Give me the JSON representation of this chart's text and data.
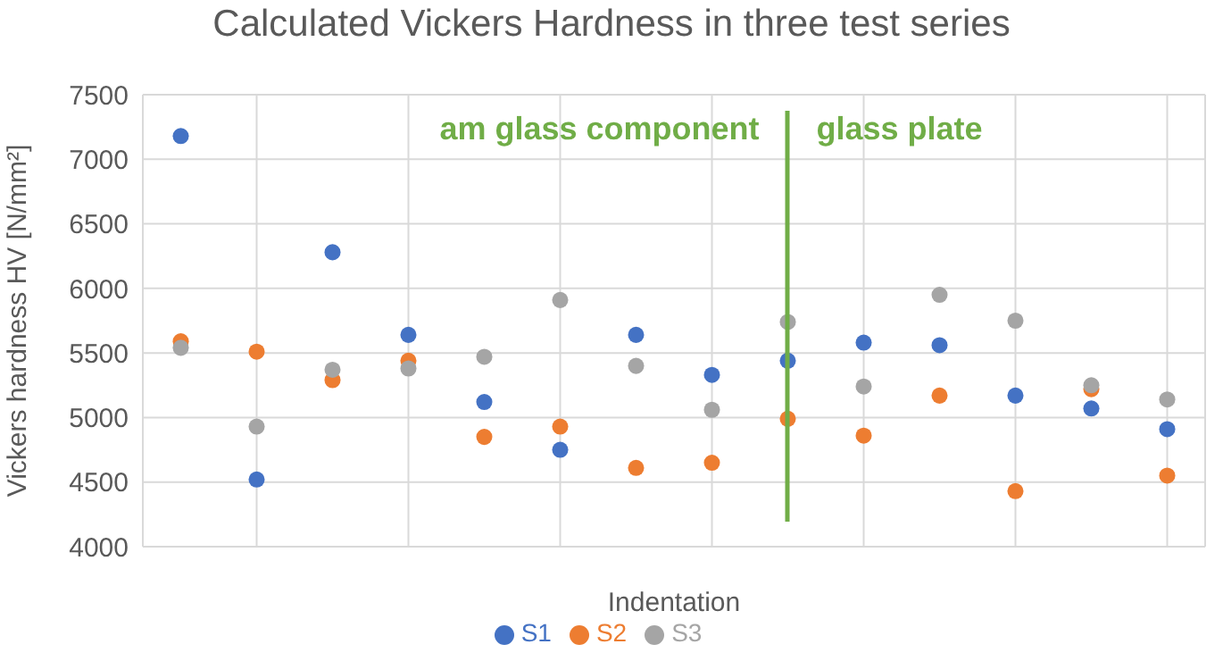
{
  "chart_data": {
    "type": "scatter",
    "title": "Calculated Vickers Hardness in three test series",
    "xlabel": "Indentation",
    "ylabel": "Vickers hardness HV [N/mm²]",
    "categories": [
      null,
      null,
      null,
      null,
      null,
      null,
      null,
      null,
      null,
      null,
      null,
      null,
      null,
      null
    ],
    "series": [
      {
        "name": "S1",
        "color": "#4472c4",
        "values": [
          7180,
          4520,
          6280,
          5640,
          5120,
          4750,
          5640,
          5330,
          5440,
          5580,
          5560,
          5170,
          5070,
          4910
        ]
      },
      {
        "name": "S2",
        "color": "#ed7d31",
        "values": [
          5590,
          5510,
          5290,
          5440,
          4850,
          4930,
          4610,
          4650,
          4990,
          4860,
          5170,
          4430,
          5220,
          4550
        ]
      },
      {
        "name": "S3",
        "color": "#a5a5a5",
        "values": [
          5540,
          4930,
          5370,
          5380,
          5470,
          5910,
          5400,
          5060,
          5740,
          5240,
          5950,
          5750,
          5250,
          5140
        ]
      }
    ],
    "ylim": [
      4000,
      7500
    ],
    "yticks": [
      4000,
      4500,
      5000,
      5500,
      6000,
      6500,
      7000,
      7500
    ],
    "grid": true,
    "legend": "bottom",
    "marker": "circle",
    "annotations": [
      "am glass component",
      "glass plate"
    ]
  }
}
